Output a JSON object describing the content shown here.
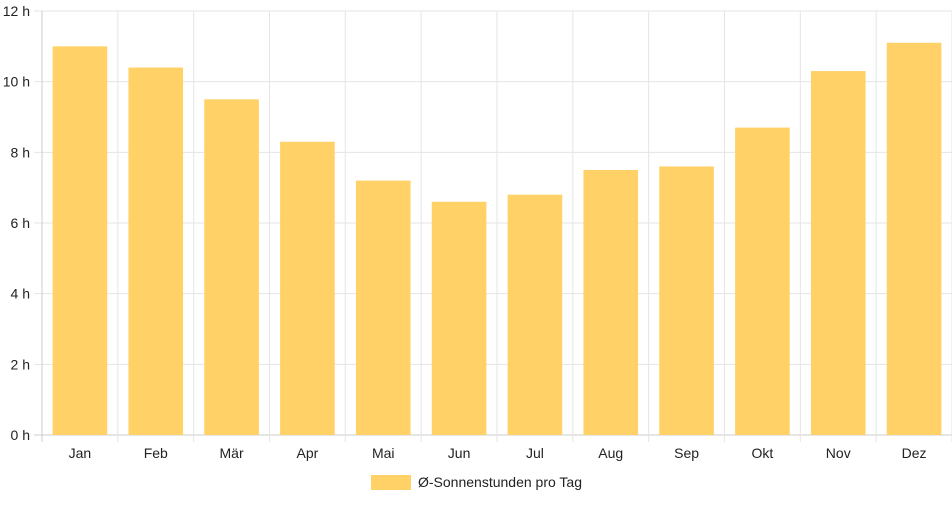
{
  "chart_data": {
    "type": "bar",
    "categories": [
      "Jan",
      "Feb",
      "Mär",
      "Apr",
      "Mai",
      "Jun",
      "Jul",
      "Aug",
      "Sep",
      "Okt",
      "Nov",
      "Dez"
    ],
    "series": [
      {
        "name": "Ø-Sonnenstunden pro Tag",
        "values": [
          11.0,
          10.4,
          9.5,
          8.3,
          7.2,
          6.6,
          6.8,
          7.5,
          7.6,
          8.7,
          10.3,
          11.1
        ],
        "color": "#ffd166"
      }
    ],
    "y_ticks": [
      "0 h",
      "2 h",
      "4 h",
      "6 h",
      "8 h",
      "10 h",
      "12 h"
    ],
    "ylim": [
      0,
      12
    ],
    "grid": true,
    "legend_position": "bottom-center"
  }
}
